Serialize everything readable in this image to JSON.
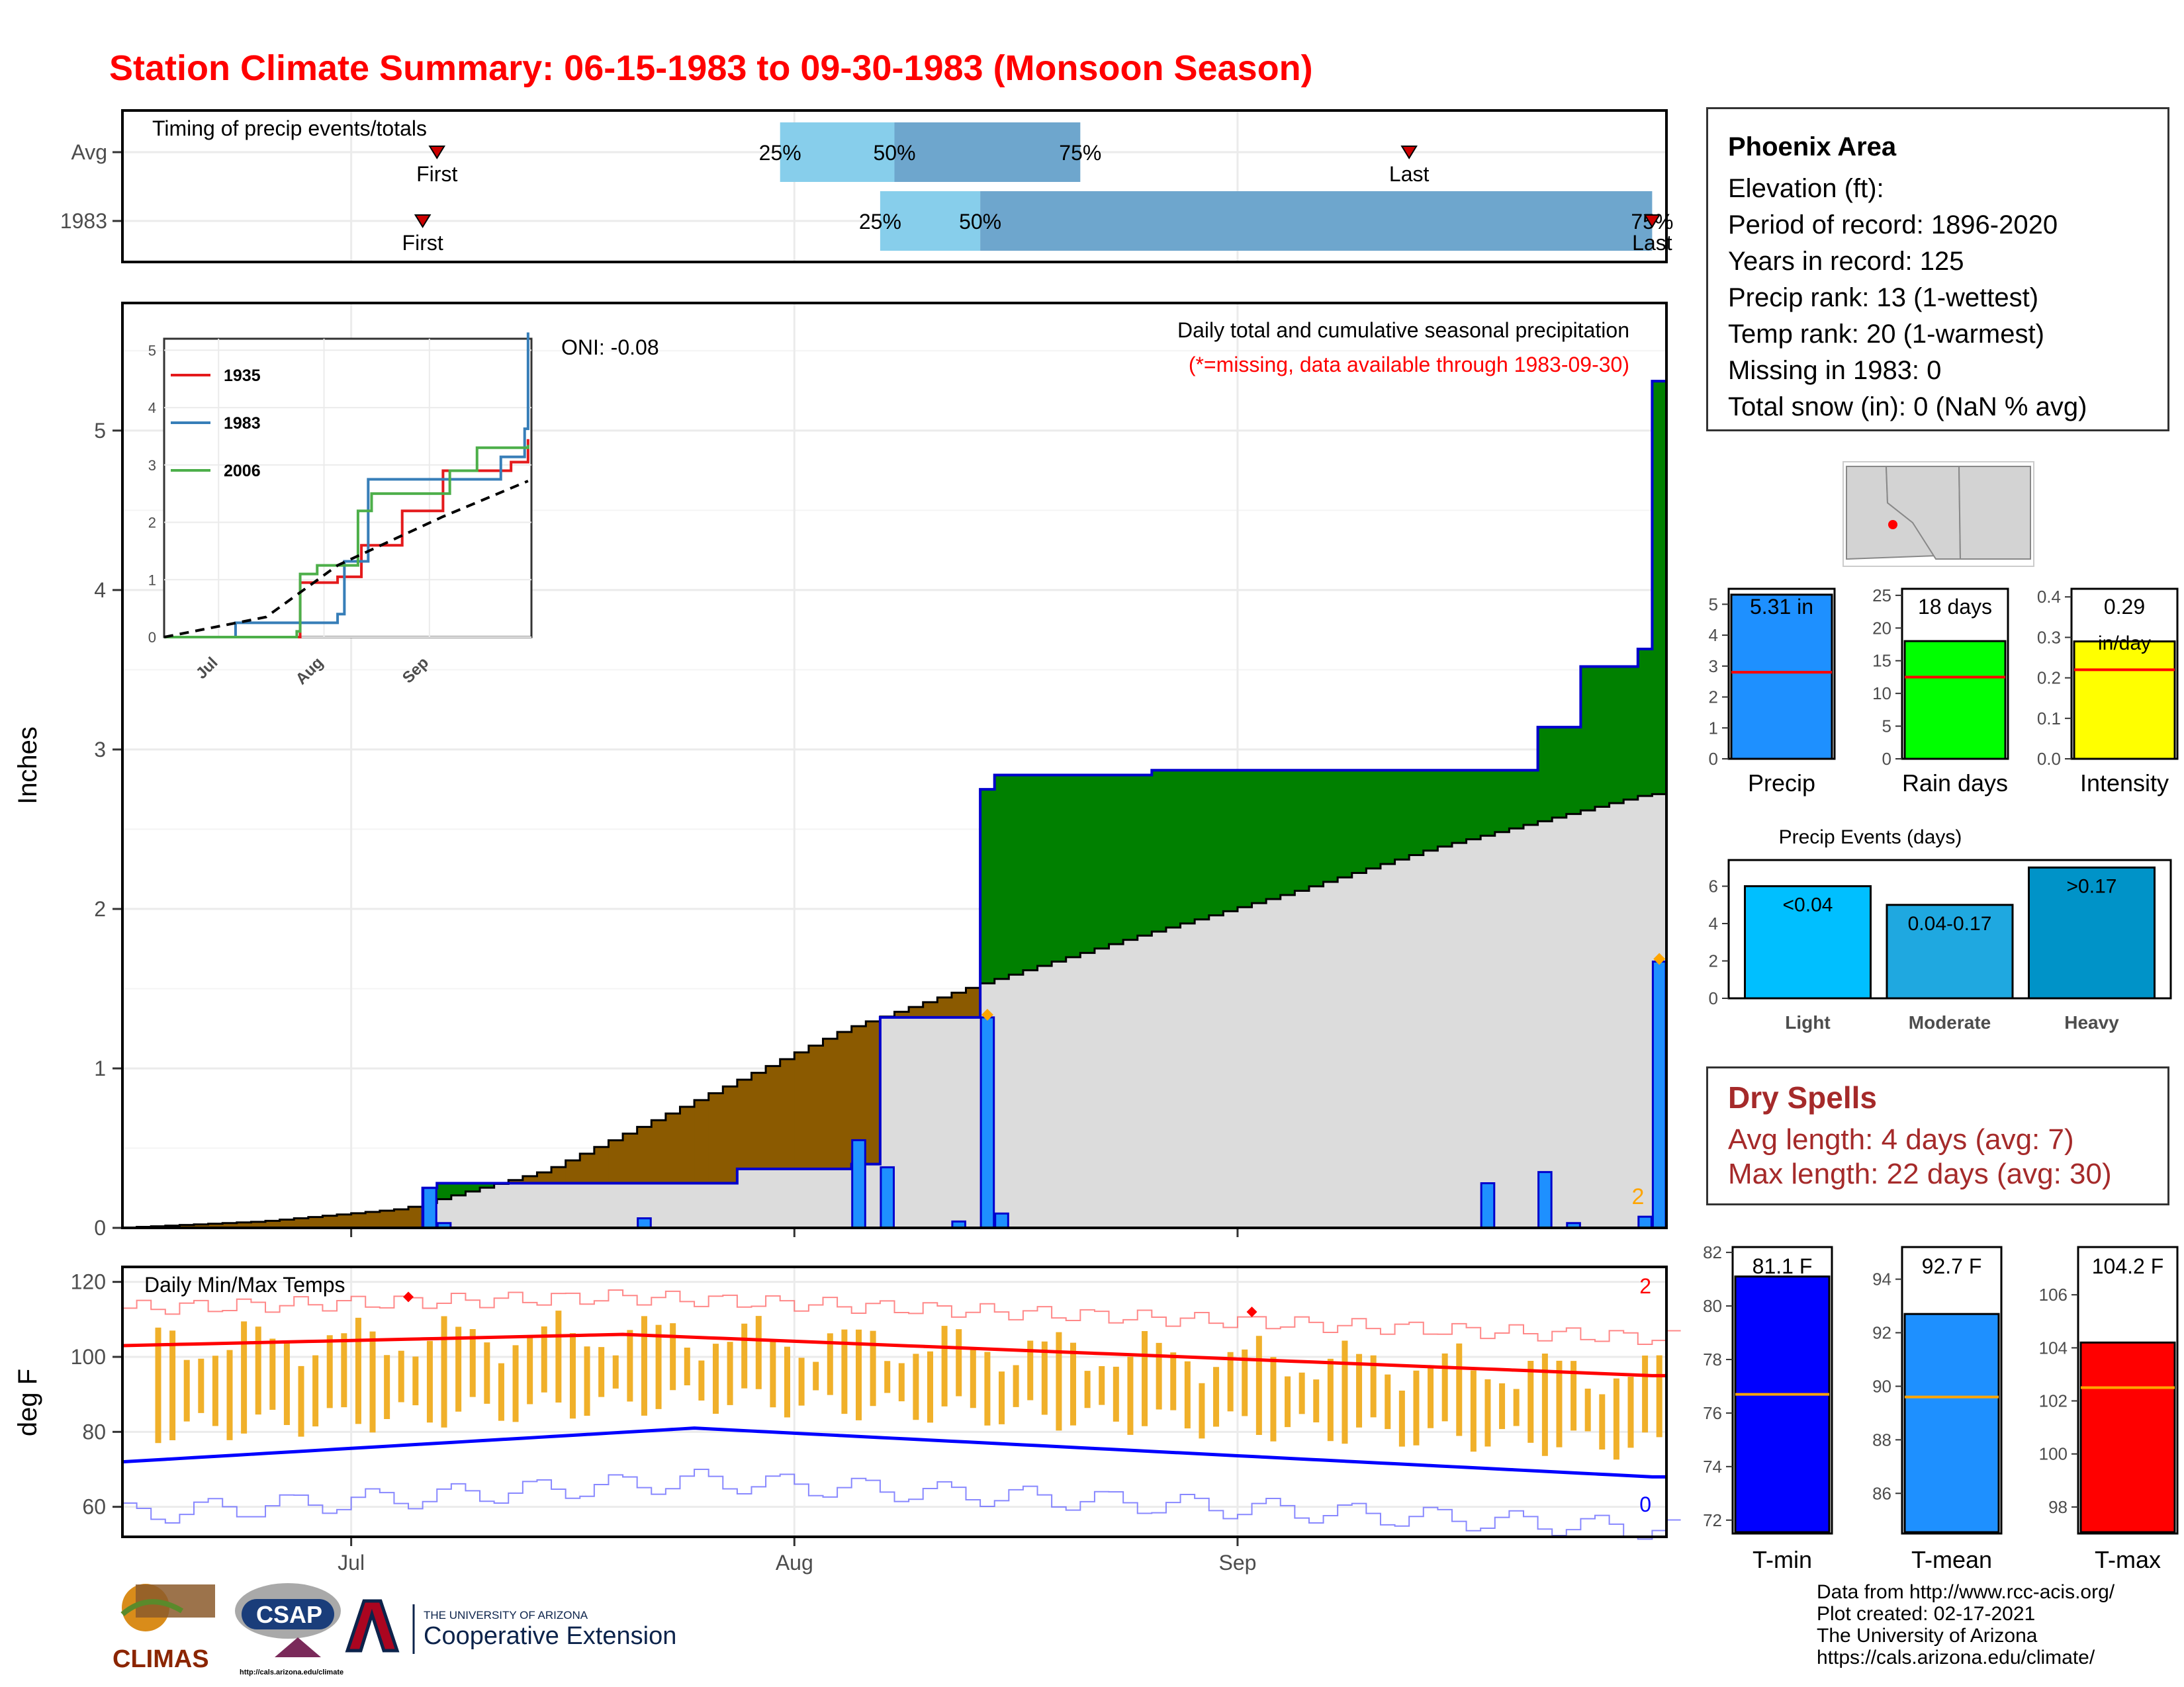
{
  "title": "Station Climate Summary: 06-15-1983 to 09-30-1983 (Monsoon Season)",
  "colors": {
    "title": "#ff0000",
    "above_normal_fill": "#008000",
    "below_normal_fill": "#8b5a00",
    "normal_fill": "#dcdcdc",
    "daily_bar": "#1e90ff",
    "series_1935": "#e41a1c",
    "series_1983": "#377eb8",
    "series_2006": "#4daf4a",
    "temp_bar": "#f0b02a",
    "tmax_line": "#ff0000",
    "tmin_line": "#0000ff",
    "dry_spells": "#a52a2a"
  },
  "timing": {
    "label": "Timing of precip events/totals",
    "rows": [
      "Avg",
      "1983"
    ],
    "first_label": "First",
    "last_label": "Last",
    "avg": {
      "first": "1983-07-07",
      "p25": "1983-07-31",
      "p50": "1983-08-08",
      "p75": "1983-08-21",
      "last": "1983-09-13"
    },
    "y1983": {
      "first": "1983-07-06",
      "p25": "1983-08-07",
      "p50": "1983-08-14",
      "p75": "1983-09-30",
      "last": "1983-09-30"
    },
    "pct_labels": [
      "25%",
      "50%",
      "75%"
    ],
    "pct_labels_1983": [
      "25%",
      "50%",
      "75%"
    ],
    "last_label_1983": "Last"
  },
  "main": {
    "ylabel": "Inches",
    "oni": "ONI: -0.08",
    "subtitle": "Daily total and cumulative seasonal precipitation",
    "missing_note": "(*=missing, data available through 1983-09-30)",
    "missing_count": "2",
    "yticks": [
      "0",
      "1",
      "2",
      "3",
      "4",
      "5"
    ],
    "xticks": [
      "Jul",
      "Aug",
      "Sep"
    ]
  },
  "inset": {
    "legend": [
      "1935",
      "1983",
      "2006"
    ],
    "yticks": [
      "0",
      "1",
      "2",
      "3",
      "4",
      "5"
    ],
    "xticks": [
      "Jul",
      "Aug",
      "Sep"
    ]
  },
  "temps": {
    "label": "Daily Min/Max Temps",
    "ylabel": "deg F",
    "yticks": [
      "60",
      "80",
      "100",
      "120"
    ],
    "xticks": [
      "Jul",
      "Aug",
      "Sep"
    ],
    "count_max": "2",
    "count_min": "0"
  },
  "station": {
    "name": "Phoenix Area",
    "elevation": "Elevation (ft):",
    "period": "Period of record: 1896-2020",
    "years": "Years in record: 125",
    "precip_rank": "Precip rank: 13 (1-wettest)",
    "temp_rank": "Temp rank: 20 (1-warmest)",
    "missing": "Missing in 1983: 0",
    "snow": "Total snow (in): 0 (NaN % avg)"
  },
  "summary_bars": [
    {
      "label": "Precip",
      "value": 5.31,
      "value_text": "5.31 in",
      "avg": 2.8,
      "ymax": 5.5,
      "ticks": [
        "0",
        "1",
        "2",
        "3",
        "4",
        "5"
      ],
      "color": "#1e90ff"
    },
    {
      "label": "Rain days",
      "value": 18,
      "value_text": "18 days",
      "avg": 12.5,
      "ymax": 26,
      "ticks": [
        "0",
        "5",
        "10",
        "15",
        "20",
        "25"
      ],
      "color": "#00ff00"
    },
    {
      "label": "Intensity",
      "value": 0.29,
      "value_text": "0.29",
      "value_text2": "in/day",
      "avg": 0.22,
      "ymax": 0.42,
      "ticks": [
        "0.0",
        "0.1",
        "0.2",
        "0.3",
        "0.4"
      ],
      "color": "#ffff00"
    }
  ],
  "precip_events": {
    "title": "Precip Events (days)",
    "categories": [
      "Light",
      "Moderate",
      "Heavy"
    ],
    "bar_labels": [
      "<0.04",
      "0.04-0.17",
      ">0.17"
    ],
    "values": [
      6,
      5,
      7
    ],
    "ticks": [
      "0",
      "2",
      "4",
      "6"
    ],
    "colors": [
      "#00bfff",
      "#1fa8e0",
      "#0093c8"
    ]
  },
  "dry_spells": {
    "title": "Dry Spells",
    "avg": "Avg length: 4 days (avg: 7)",
    "max": "Max length: 22 days (avg: 30)"
  },
  "temp_bars": [
    {
      "label": "T-min",
      "value": 81.1,
      "value_text": "81.1 F",
      "avg": 76.7,
      "ylim": [
        71.5,
        82.2
      ],
      "ticks": [
        "72",
        "74",
        "76",
        "78",
        "80",
        "82"
      ],
      "color": "#0000ff"
    },
    {
      "label": "T-mean",
      "value": 92.7,
      "value_text": "92.7 F",
      "avg": 89.6,
      "ylim": [
        84.5,
        95.2
      ],
      "ticks": [
        "86",
        "88",
        "90",
        "92",
        "94"
      ],
      "color": "#1e90ff"
    },
    {
      "label": "T-max",
      "value": 104.2,
      "value_text": "104.2 F",
      "avg": 102.5,
      "ylim": [
        97.0,
        107.8
      ],
      "ticks": [
        "98",
        "100",
        "102",
        "104",
        "106"
      ],
      "color": "#ff0000"
    }
  ],
  "credits": [
    "Data from http://www.rcc-acis.org/",
    "Plot created: 02-17-2021",
    "The University of Arizona",
    "https://cals.arizona.edu/climate/"
  ],
  "logos": {
    "climas": "CLIMAS",
    "csap": "CSAP",
    "csap_url": "http://cals.arizona.edu/climate",
    "ua_line1": "THE UNIVERSITY OF ARIZONA",
    "ua_line2": "Cooperative Extension"
  },
  "chart_data": [
    {
      "type": "area",
      "title": "Daily total and cumulative seasonal precipitation",
      "ylabel": "Inches",
      "x_range": [
        "1983-06-15",
        "1983-09-30"
      ],
      "ylim": [
        0,
        5.8
      ],
      "cumulative_1983": [
        {
          "date": "1983-06-15",
          "value": 0.0
        },
        {
          "date": "1983-07-06",
          "value": 0.25
        },
        {
          "date": "1983-07-07",
          "value": 0.28
        },
        {
          "date": "1983-07-28",
          "value": 0.37
        },
        {
          "date": "1983-08-05",
          "value": 0.4
        },
        {
          "date": "1983-08-07",
          "value": 1.32
        },
        {
          "date": "1983-08-14",
          "value": 2.75
        },
        {
          "date": "1983-08-15",
          "value": 2.84
        },
        {
          "date": "1983-08-20",
          "value": 2.84
        },
        {
          "date": "1983-08-26",
          "value": 2.87
        },
        {
          "date": "1983-09-22",
          "value": 3.14
        },
        {
          "date": "1983-09-25",
          "value": 3.52
        },
        {
          "date": "1983-09-29",
          "value": 3.63
        },
        {
          "date": "1983-09-30",
          "value": 5.31
        }
      ],
      "normal_cumulative": [
        {
          "date": "1983-06-15",
          "value": 0.0
        },
        {
          "date": "1983-06-25",
          "value": 0.04
        },
        {
          "date": "1983-07-05",
          "value": 0.12
        },
        {
          "date": "1983-07-15",
          "value": 0.36
        },
        {
          "date": "1983-07-25",
          "value": 0.78
        },
        {
          "date": "1983-08-05",
          "value": 1.25
        },
        {
          "date": "1983-08-14",
          "value": 1.52
        },
        {
          "date": "1983-08-25",
          "value": 1.82
        },
        {
          "date": "1983-09-05",
          "value": 2.1
        },
        {
          "date": "1983-09-15",
          "value": 2.38
        },
        {
          "date": "1983-09-30",
          "value": 2.72
        }
      ],
      "daily": [
        {
          "date": "1983-07-06",
          "value": 0.25
        },
        {
          "date": "1983-07-07",
          "value": 0.03
        },
        {
          "date": "1983-07-21",
          "value": 0.06
        },
        {
          "date": "1983-08-05",
          "value": 0.55
        },
        {
          "date": "1983-08-07",
          "value": 0.38
        },
        {
          "date": "1983-08-12",
          "value": 0.04
        },
        {
          "date": "1983-08-14",
          "value": 1.32
        },
        {
          "date": "1983-08-15",
          "value": 0.09
        },
        {
          "date": "1983-09-18",
          "value": 0.28
        },
        {
          "date": "1983-09-22",
          "value": 0.35
        },
        {
          "date": "1983-09-24",
          "value": 0.03
        },
        {
          "date": "1983-09-29",
          "value": 0.07
        },
        {
          "date": "1983-09-30",
          "value": 1.67
        }
      ]
    },
    {
      "type": "line",
      "title": "",
      "series": [
        {
          "name": "1935",
          "points": [
            {
              "date": "1983-06-15",
              "value": 0
            },
            {
              "date": "1983-07-24",
              "value": 0
            },
            {
              "date": "1983-07-25",
              "value": 0.95
            },
            {
              "date": "1983-08-05",
              "value": 1.05
            },
            {
              "date": "1983-08-12",
              "value": 1.6
            },
            {
              "date": "1983-08-24",
              "value": 2.2
            },
            {
              "date": "1983-09-05",
              "value": 2.9
            },
            {
              "date": "1983-09-25",
              "value": 3.05
            },
            {
              "date": "1983-09-30",
              "value": 3.45
            }
          ]
        },
        {
          "name": "1983",
          "points": [
            {
              "date": "1983-06-15",
              "value": 0
            },
            {
              "date": "1983-07-06",
              "value": 0.25
            },
            {
              "date": "1983-08-05",
              "value": 0.4
            },
            {
              "date": "1983-08-07",
              "value": 1.32
            },
            {
              "date": "1983-08-14",
              "value": 2.75
            },
            {
              "date": "1983-09-22",
              "value": 3.14
            },
            {
              "date": "1983-09-29",
              "value": 3.63
            },
            {
              "date": "1983-09-30",
              "value": 5.31
            }
          ]
        },
        {
          "name": "2006",
          "points": [
            {
              "date": "1983-06-15",
              "value": 0
            },
            {
              "date": "1983-07-24",
              "value": 0.1
            },
            {
              "date": "1983-07-25",
              "value": 1.1
            },
            {
              "date": "1983-07-30",
              "value": 1.25
            },
            {
              "date": "1983-08-11",
              "value": 2.2
            },
            {
              "date": "1983-08-15",
              "value": 2.5
            },
            {
              "date": "1983-09-07",
              "value": 2.9
            },
            {
              "date": "1983-09-15",
              "value": 3.3
            },
            {
              "date": "1983-09-30",
              "value": 3.35
            }
          ]
        }
      ],
      "normal": [
        {
          "date": "1983-06-15",
          "value": 0
        },
        {
          "date": "1983-07-15",
          "value": 0.35
        },
        {
          "date": "1983-08-05",
          "value": 1.25
        },
        {
          "date": "1983-09-05",
          "value": 2.1
        },
        {
          "date": "1983-09-30",
          "value": 2.72
        }
      ]
    },
    {
      "type": "line",
      "title": "Daily Min/Max Temps",
      "ylabel": "deg F",
      "ylim": [
        52,
        124
      ],
      "tmax_normal_endpoints": [
        {
          "date": "1983-06-15",
          "value": 103
        },
        {
          "date": "1983-07-20",
          "value": 106
        },
        {
          "date": "1983-09-30",
          "value": 95
        }
      ],
      "tmin_normal_endpoints": [
        {
          "date": "1983-06-15",
          "value": 72
        },
        {
          "date": "1983-07-25",
          "value": 81
        },
        {
          "date": "1983-09-30",
          "value": 68
        }
      ],
      "record_max_markers": [
        {
          "date": "1983-07-05",
          "value": 116
        },
        {
          "date": "1983-09-02",
          "value": 112
        }
      ]
    },
    {
      "type": "bar",
      "title": "Precip Events (days)",
      "categories": [
        "Light",
        "Moderate",
        "Heavy"
      ],
      "values": [
        6,
        5,
        7
      ]
    }
  ]
}
